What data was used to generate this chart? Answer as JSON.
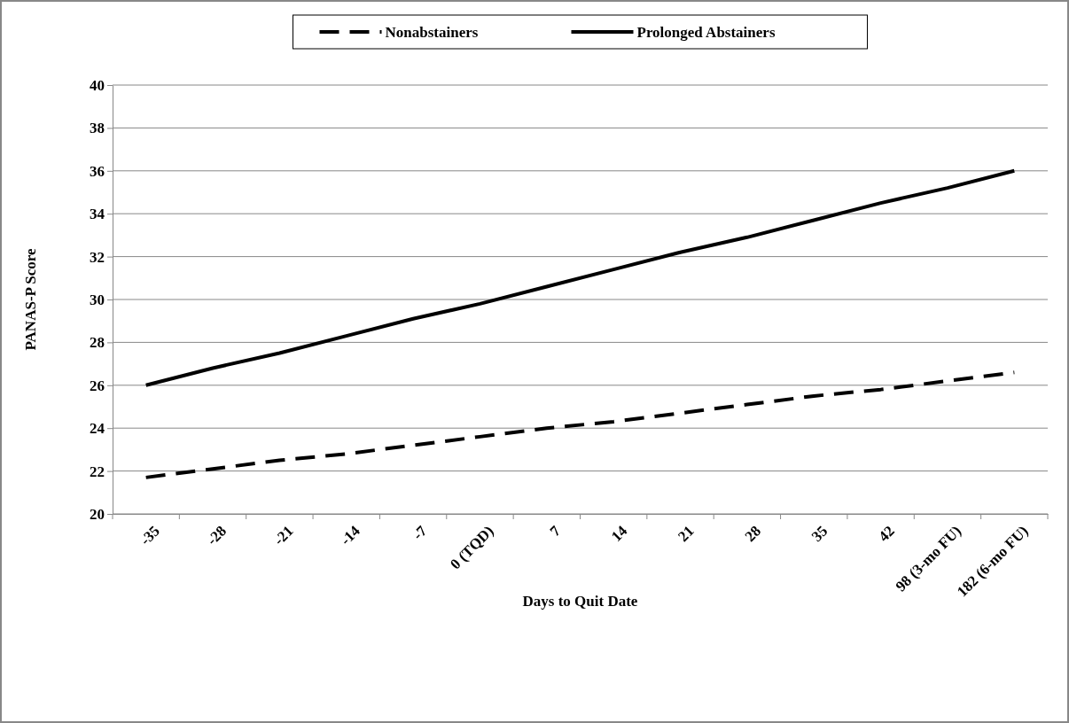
{
  "chart_data": {
    "type": "line",
    "xlabel": "Days to Quit Date",
    "ylabel": "PANAS-P Score",
    "categories": [
      "-35",
      "-28",
      "-21",
      "-14",
      "-7",
      "0 (TQD)",
      "7",
      "14",
      "21",
      "28",
      "35",
      "42",
      "98 (3-mo FU)",
      "182 (6-mo FU)"
    ],
    "series": [
      {
        "name": "Nonabstainers",
        "color": "#000000",
        "line_style": "dashed",
        "values": [
          21.7,
          22.1,
          22.5,
          22.8,
          23.2,
          23.6,
          24.0,
          24.3,
          24.7,
          25.1,
          25.5,
          25.8,
          26.2,
          26.6
        ]
      },
      {
        "name": "Prolonged Abstainers",
        "color": "#000000",
        "line_style": "solid",
        "values": [
          26.0,
          26.8,
          27.5,
          28.3,
          29.1,
          29.8,
          30.6,
          31.4,
          32.2,
          32.9,
          33.7,
          34.5,
          35.2,
          36.0
        ]
      }
    ],
    "ylim": [
      20,
      40
    ],
    "yticks": [
      20,
      22,
      24,
      26,
      28,
      30,
      32,
      34,
      36,
      38,
      40
    ],
    "grid": "y",
    "legend": "top",
    "marker": "none"
  }
}
